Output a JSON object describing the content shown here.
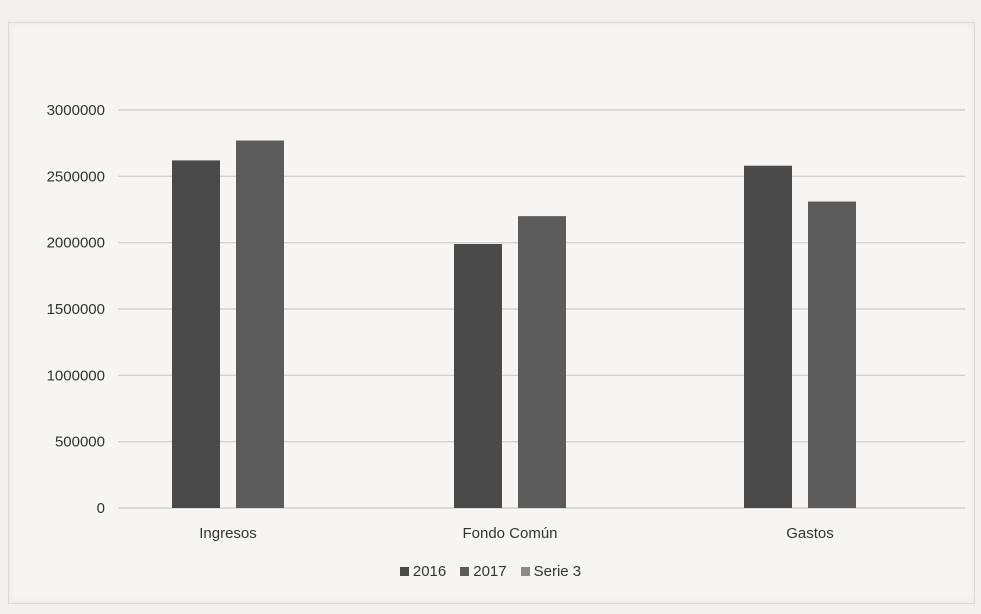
{
  "chart_data": {
    "type": "bar",
    "categories": [
      "Ingresos",
      "Fondo Común",
      "Gastos"
    ],
    "series": [
      {
        "name": "2016",
        "values": [
          2620000,
          1990000,
          2580000
        ]
      },
      {
        "name": "2017",
        "values": [
          2770000,
          2200000,
          2310000
        ]
      },
      {
        "name": "Serie 3",
        "values": [
          0,
          0,
          0
        ]
      }
    ],
    "y_ticks": [
      "3000000",
      "2500000",
      "2000000",
      "1500000",
      "1000000",
      "500000",
      "0"
    ],
    "ylim": [
      0,
      3000000
    ],
    "grid": true,
    "legend": "bottom",
    "colors": {
      "2016": "#4a4a4a",
      "2017": "#5c5c5c",
      "Serie 3": "#8a8a8a",
      "grid": "#d4d2ce",
      "axis_text": "#333333"
    }
  }
}
